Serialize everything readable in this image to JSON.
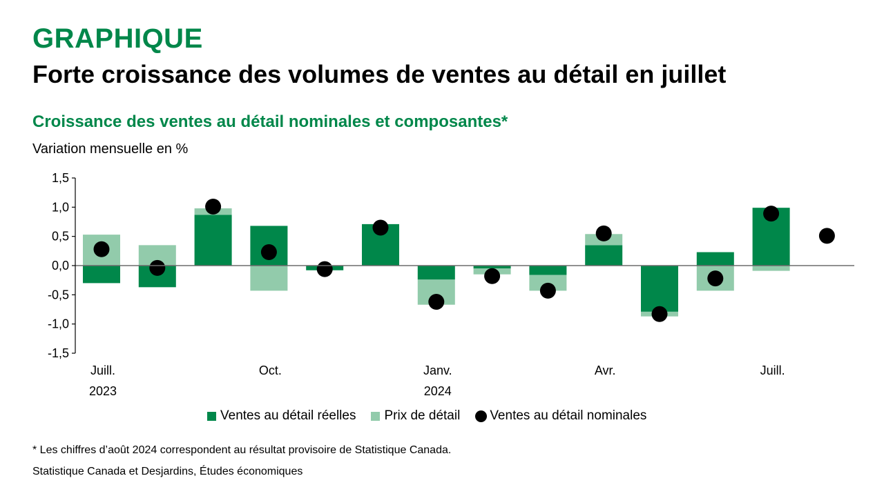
{
  "header": {
    "kicker": "GRAPHIQUE",
    "title": "Forte croissance des volumes de ventes au détail en juillet",
    "subtitle": "Croissance des ventes au détail nominales et composantes*",
    "unit_label": "Variation mensuelle en %"
  },
  "footer": {
    "note": "* Les chiffres d’août 2024 correspondent au résultat provisoire de Statistique Canada.",
    "source": "Statistique Canada et Desjardins, Études économiques"
  },
  "colors": {
    "real": "#00874a",
    "price": "#92cbab",
    "nominal": "#000000",
    "accent": "#00874a"
  },
  "chart_data": {
    "type": "bar",
    "stacked": true,
    "title": "Croissance des ventes au détail nominales et composantes*",
    "ylabel": "Variation mensuelle en %",
    "xlabel": "",
    "ylim": [
      -1.5,
      1.5
    ],
    "yticks": [
      "1,5",
      "1,0",
      "0,5",
      "0,0",
      "-0,5",
      "-1,0",
      "-1,5"
    ],
    "ytick_values": [
      1.5,
      1.0,
      0.5,
      0.0,
      -0.5,
      -1.0,
      -1.5
    ],
    "grid": false,
    "legend_position": "bottom",
    "categories": [
      "2023-07",
      "2023-08",
      "2023-09",
      "2023-10",
      "2023-11",
      "2023-12",
      "2024-01",
      "2024-02",
      "2024-03",
      "2024-04",
      "2024-05",
      "2024-06",
      "2024-07",
      "2024-08"
    ],
    "xtick_labels": [
      {
        "index": 0,
        "line1": "Juill.",
        "line2": "2023"
      },
      {
        "index": 3,
        "line1": "Oct.",
        "line2": ""
      },
      {
        "index": 6,
        "line1": "Janv.",
        "line2": "2024"
      },
      {
        "index": 9,
        "line1": "Avr.",
        "line2": ""
      },
      {
        "index": 12,
        "line1": "Juill.",
        "line2": ""
      }
    ],
    "series": [
      {
        "name": "Ventes au détail réelles",
        "kind": "bar",
        "values": [
          -0.3,
          -0.37,
          0.87,
          0.68,
          -0.08,
          0.71,
          -0.24,
          -0.05,
          -0.16,
          0.35,
          -0.79,
          0.23,
          0.99,
          null
        ]
      },
      {
        "name": "Prix de détail",
        "kind": "bar",
        "values": [
          0.53,
          0.35,
          0.11,
          -0.43,
          0.0,
          0.0,
          -0.43,
          -0.1,
          -0.27,
          0.19,
          -0.08,
          -0.43,
          -0.09,
          null
        ]
      },
      {
        "name": "Ventes au détail nominales",
        "kind": "scatter",
        "values": [
          0.28,
          -0.04,
          1.01,
          0.23,
          -0.06,
          0.65,
          -0.62,
          -0.18,
          -0.43,
          0.55,
          -0.83,
          -0.22,
          0.89,
          0.51
        ]
      }
    ]
  },
  "legend": {
    "items": [
      "Ventes au détail réelles",
      "Prix de détail",
      "Ventes au détail nominales"
    ]
  }
}
